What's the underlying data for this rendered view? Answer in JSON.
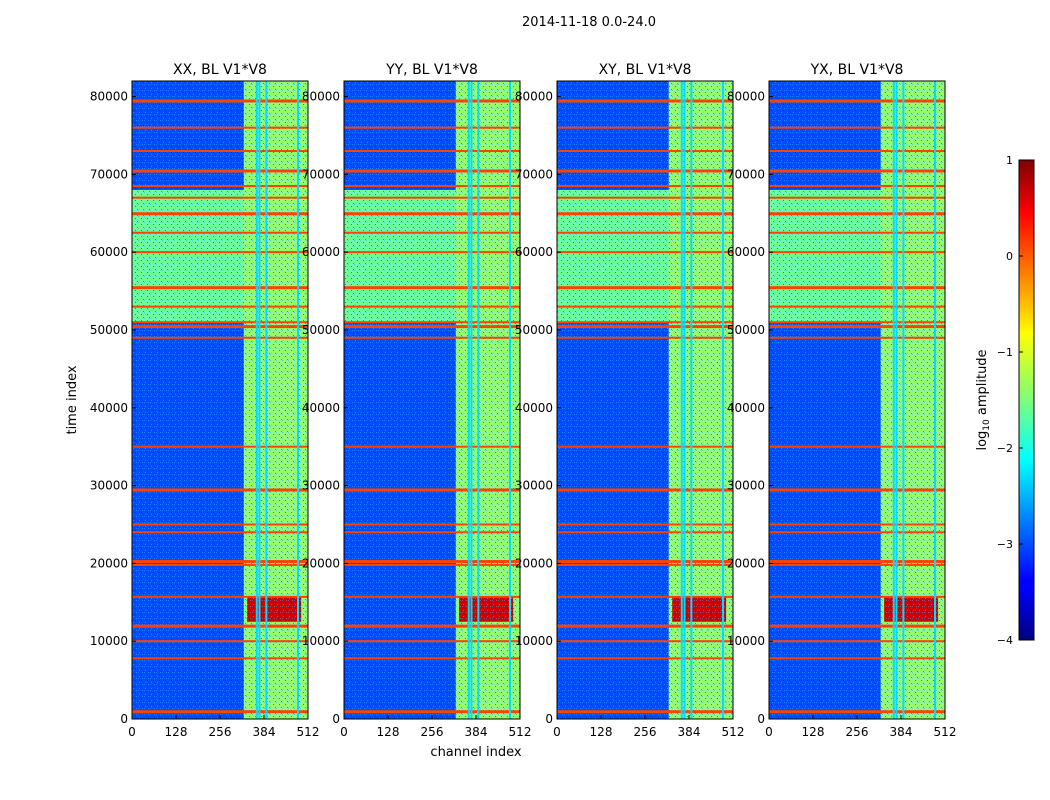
{
  "figure": {
    "suptitle": "2014-11-18 0.0-24.0",
    "colorbar_label": "log",
    "colorbar_label_sub": "10",
    "colorbar_label_suffix": " amplitude"
  },
  "chart_data": {
    "type": "heatmap",
    "xlabel": "channel index",
    "ylabel": "time index",
    "xlim": [
      0,
      512
    ],
    "ylim": [
      0,
      82000
    ],
    "xticks": [
      0,
      128,
      256,
      384,
      512
    ],
    "yticks": [
      0,
      10000,
      20000,
      30000,
      40000,
      50000,
      60000,
      70000,
      80000
    ],
    "colorbar": {
      "min": -4,
      "max": 1,
      "ticks": [
        -4,
        -3,
        -2,
        -1,
        0,
        1
      ],
      "tick_labels": [
        "−4",
        "−3",
        "−2",
        "−1",
        "0",
        "1"
      ],
      "colormap": "jet"
    },
    "panels": [
      {
        "title": "XX, BL V1*V8",
        "polarization": "XX",
        "baseline": "V1*V8"
      },
      {
        "title": "YY, BL V1*V8",
        "polarization": "YY",
        "baseline": "V1*V8"
      },
      {
        "title": "XY, BL V1*V8",
        "polarization": "XY",
        "baseline": "V1*V8"
      },
      {
        "title": "YX, BL V1*V8",
        "polarization": "YX",
        "baseline": "V1*V8"
      }
    ],
    "features": {
      "background_level": -3.0,
      "bright_band_channels": [
        325,
        512
      ],
      "bright_band_level": -1.4,
      "high_level_time_range": [
        51000,
        68000
      ],
      "high_level": -1.6,
      "rfi_block_time_range": [
        12500,
        15800
      ],
      "rfi_block_level": 0.6,
      "horizontal_flag_rows": [
        1000,
        7800,
        10000,
        12000,
        15700,
        19800,
        20300,
        24000,
        25000,
        29500,
        35000,
        49000,
        50500,
        51000,
        53000,
        55500,
        60000,
        62500,
        65000,
        67000,
        68500,
        70500,
        73000,
        76000,
        79500
      ],
      "vertical_line_channels": [
        360,
        368,
        388,
        480
      ]
    }
  }
}
